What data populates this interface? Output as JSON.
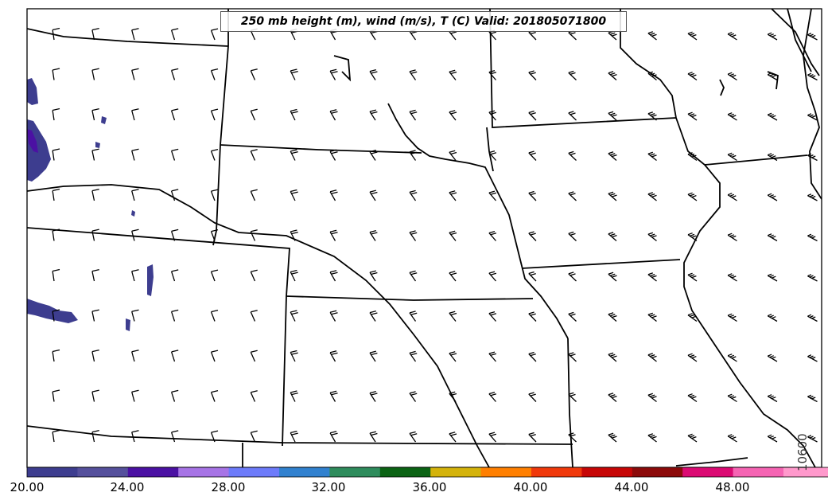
{
  "title": "250 mb height (m), wind (m/s), T (C) Valid: 201805071800",
  "contour_label": "10600",
  "colorbar": {
    "ticks": [
      "20.00",
      "24.00",
      "28.00",
      "32.00",
      "36.00",
      "40.00",
      "44.00",
      "48.00"
    ],
    "colors": [
      "#3d3d8f",
      "#55509c",
      "#4b11a3",
      "#a774e6",
      "#6d7bfa",
      "#3181cf",
      "#2e8c5c",
      "#0b6314",
      "#d4b30b",
      "#ff7f00",
      "#f0390b",
      "#c70606",
      "#8c0a0a",
      "#db0a73",
      "#f564b3",
      "#ff99cc"
    ]
  },
  "colors": {
    "fill_low": "#3d3d8f",
    "fill_core": "#4b11a3",
    "boundary": "#000000"
  }
}
